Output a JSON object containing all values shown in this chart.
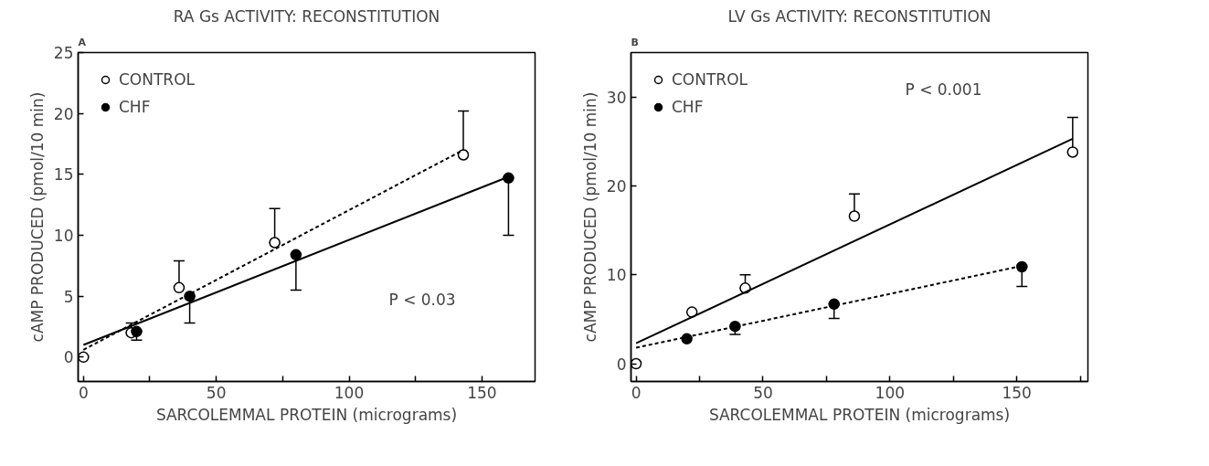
{
  "chart_data": [
    {
      "type": "scatter",
      "title": "RA Gs ACTIVITY: RECONSTITUTION",
      "xlabel": "SARCOLEMMAL PROTEIN (micrograms)",
      "ylabel": "cAMP PRODUCED (pmol/10 min)",
      "xlim": [
        -2,
        170
      ],
      "ylim": [
        -2,
        25
      ],
      "xticks": [
        0,
        {
          "value": 25,
          "label": null
        },
        50,
        {
          "value": 75,
          "label": null
        },
        100,
        {
          "value": 125,
          "label": null
        },
        150
      ],
      "yticks": [
        0,
        5,
        10,
        15,
        20,
        25
      ],
      "grid": false,
      "legend": "top left",
      "marker": "circle",
      "annotations": [
        "A",
        "P < 0.03"
      ],
      "series": [
        {
          "name": "CONTROL",
          "color": "#ffffff",
          "x": [
            0,
            18,
            36,
            72,
            143
          ],
          "values": [
            0,
            2.0,
            5.7,
            9.4,
            16.6
          ],
          "errors": [
            null,
            [
              2.0,
              2.8
            ],
            [
              5.7,
              7.9
            ],
            [
              9.4,
              12.2
            ],
            [
              16.6,
              20.2
            ]
          ]
        },
        {
          "name": "CHF",
          "color": "#000000",
          "x": [
            20,
            40,
            80,
            160
          ],
          "values": [
            2.1,
            5.0,
            8.4,
            14.7
          ],
          "errors": [
            [
              1.4,
              2.1
            ],
            [
              2.8,
              5.0
            ],
            [
              5.5,
              8.4
            ],
            [
              10.0,
              14.7
            ]
          ]
        },
        {
          "type": "line",
          "color": "#000000",
          "line_style": "dashed",
          "marker": "none",
          "x": [
            0,
            143
          ],
          "values": [
            0.6,
            17.0
          ]
        },
        {
          "type": "line",
          "color": "#000000",
          "line_style": "solid",
          "marker": "none",
          "x": [
            0,
            160
          ],
          "values": [
            1.0,
            14.8
          ]
        }
      ]
    },
    {
      "type": "scatter",
      "title": "LV Gs ACTIVITY: RECONSTITUTION",
      "xlabel": "SARCOLEMMAL PROTEIN (micrograms)",
      "ylabel": "cAMP PRODUCED (pmol/10 min)",
      "xlim": [
        -2,
        178
      ],
      "ylim": [
        -2,
        35
      ],
      "xticks": [
        0,
        {
          "value": 25,
          "label": null
        },
        50,
        {
          "value": 75,
          "label": null
        },
        100,
        {
          "value": 125,
          "label": null
        },
        150,
        {
          "value": 175,
          "label": null
        }
      ],
      "yticks": [
        0,
        10,
        20,
        30
      ],
      "grid": false,
      "legend": "top left",
      "marker": "circle",
      "annotations": [
        "B",
        "P < 0.001"
      ],
      "series": [
        {
          "name": "CONTROL",
          "color": "#ffffff",
          "x": [
            0,
            22,
            43,
            86,
            172
          ],
          "values": [
            0,
            5.8,
            8.5,
            16.6,
            23.8
          ],
          "errors": [
            null,
            null,
            [
              8.5,
              10.0
            ],
            [
              16.6,
              19.1
            ],
            [
              23.8,
              27.7
            ]
          ]
        },
        {
          "name": "CHF",
          "color": "#000000",
          "x": [
            20,
            39,
            78,
            152
          ],
          "values": [
            2.8,
            4.2,
            6.7,
            10.9
          ],
          "errors": [
            null,
            [
              3.3,
              4.2
            ],
            [
              5.1,
              6.7
            ],
            [
              8.7,
              10.9
            ]
          ]
        },
        {
          "type": "line",
          "color": "#000000",
          "line_style": "solid",
          "marker": "none",
          "x": [
            0,
            172
          ],
          "values": [
            2.3,
            25.3
          ]
        },
        {
          "type": "line",
          "color": "#000000",
          "line_style": "dashed",
          "marker": "none",
          "x": [
            0,
            152
          ],
          "values": [
            1.8,
            11.0
          ]
        }
      ]
    }
  ]
}
